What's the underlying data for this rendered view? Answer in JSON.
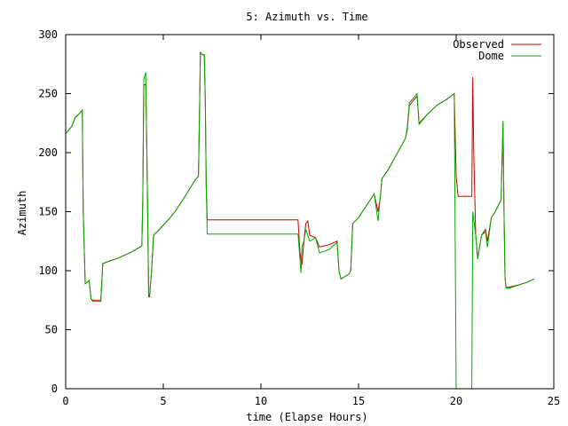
{
  "chart_data": {
    "type": "line",
    "title": "5: Azimuth vs. Time",
    "xlabel": "time (Elapse Hours)",
    "ylabel": "Azimuth",
    "xlim": [
      0,
      25
    ],
    "ylim": [
      0,
      300
    ],
    "xticks": [
      0,
      5,
      10,
      15,
      20,
      25
    ],
    "yticks": [
      0,
      50,
      100,
      150,
      200,
      250,
      300
    ],
    "xtick_labels": [
      "0",
      "5",
      "10",
      "15",
      "20",
      "25"
    ],
    "ytick_labels": [
      "0",
      "50",
      "100",
      "150",
      "200",
      "250",
      "300"
    ],
    "grid": false,
    "legend": "top-right",
    "series": [
      {
        "name": "Observed",
        "color": "#cc0000",
        "points": [
          [
            0.0,
            216
          ],
          [
            0.3,
            222
          ],
          [
            0.5,
            230
          ],
          [
            0.7,
            233
          ],
          [
            0.85,
            236
          ],
          [
            0.9,
            150
          ],
          [
            1.0,
            89
          ],
          [
            1.1,
            90
          ],
          [
            1.2,
            92
          ],
          [
            1.3,
            76
          ],
          [
            1.4,
            75
          ],
          [
            1.8,
            75
          ],
          [
            1.9,
            106
          ],
          [
            2.2,
            108
          ],
          [
            2.6,
            110
          ],
          [
            3.0,
            113
          ],
          [
            3.4,
            116
          ],
          [
            3.7,
            119
          ],
          [
            3.9,
            121
          ],
          [
            3.95,
            160
          ],
          [
            4.0,
            257
          ],
          [
            4.1,
            258
          ],
          [
            4.15,
            210
          ],
          [
            4.2,
            150
          ],
          [
            4.25,
            78
          ],
          [
            4.3,
            78
          ],
          [
            4.4,
            100
          ],
          [
            4.5,
            130
          ],
          [
            4.8,
            135
          ],
          [
            5.2,
            142
          ],
          [
            5.6,
            150
          ],
          [
            6.0,
            160
          ],
          [
            6.3,
            168
          ],
          [
            6.6,
            176
          ],
          [
            6.8,
            180
          ],
          [
            6.85,
            230
          ],
          [
            6.9,
            285
          ],
          [
            7.0,
            283
          ],
          [
            7.1,
            283
          ],
          [
            7.15,
            245
          ],
          [
            7.2,
            170
          ],
          [
            7.25,
            143
          ],
          [
            9.5,
            143
          ],
          [
            11.9,
            143
          ],
          [
            12.0,
            115
          ],
          [
            12.1,
            105
          ],
          [
            12.2,
            125
          ],
          [
            12.3,
            140
          ],
          [
            12.4,
            142
          ],
          [
            12.5,
            130
          ],
          [
            12.8,
            128
          ],
          [
            13.0,
            120
          ],
          [
            13.5,
            122
          ],
          [
            13.9,
            125
          ],
          [
            14.0,
            100
          ],
          [
            14.1,
            93
          ],
          [
            14.3,
            95
          ],
          [
            14.5,
            97
          ],
          [
            14.6,
            100
          ],
          [
            14.7,
            140
          ],
          [
            15.0,
            145
          ],
          [
            15.4,
            155
          ],
          [
            15.8,
            165
          ],
          [
            16.0,
            150
          ],
          [
            16.1,
            160
          ],
          [
            16.2,
            178
          ],
          [
            16.5,
            185
          ],
          [
            17.0,
            200
          ],
          [
            17.4,
            212
          ],
          [
            17.5,
            220
          ],
          [
            17.6,
            240
          ],
          [
            18.0,
            248
          ],
          [
            18.1,
            225
          ],
          [
            18.5,
            232
          ],
          [
            19.0,
            240
          ],
          [
            19.5,
            245
          ],
          [
            19.9,
            250
          ],
          [
            20.0,
            180
          ],
          [
            20.1,
            163
          ],
          [
            20.8,
            163
          ],
          [
            20.85,
            264
          ],
          [
            20.9,
            200
          ],
          [
            21.0,
            130
          ],
          [
            21.1,
            110
          ],
          [
            21.3,
            130
          ],
          [
            21.5,
            135
          ],
          [
            21.6,
            125
          ],
          [
            21.8,
            145
          ],
          [
            22.0,
            150
          ],
          [
            22.3,
            160
          ],
          [
            22.4,
            225
          ],
          [
            22.45,
            150
          ],
          [
            22.5,
            95
          ],
          [
            22.55,
            86
          ],
          [
            22.7,
            86
          ],
          [
            23.2,
            88
          ],
          [
            23.6,
            90
          ],
          [
            24.0,
            93
          ]
        ]
      },
      {
        "name": "Dome",
        "color": "#00aa00",
        "points": [
          [
            0.0,
            216
          ],
          [
            0.3,
            222
          ],
          [
            0.5,
            230
          ],
          [
            0.7,
            233
          ],
          [
            0.85,
            236
          ],
          [
            0.9,
            150
          ],
          [
            1.0,
            89
          ],
          [
            1.1,
            90
          ],
          [
            1.2,
            92
          ],
          [
            1.3,
            76
          ],
          [
            1.4,
            74
          ],
          [
            1.8,
            74
          ],
          [
            1.9,
            106
          ],
          [
            2.2,
            108
          ],
          [
            2.6,
            110
          ],
          [
            3.0,
            113
          ],
          [
            3.4,
            116
          ],
          [
            3.7,
            119
          ],
          [
            3.9,
            121
          ],
          [
            3.95,
            160
          ],
          [
            4.0,
            262
          ],
          [
            4.1,
            268
          ],
          [
            4.15,
            210
          ],
          [
            4.2,
            150
          ],
          [
            4.25,
            80
          ],
          [
            4.3,
            80
          ],
          [
            4.4,
            100
          ],
          [
            4.5,
            130
          ],
          [
            4.8,
            135
          ],
          [
            5.2,
            142
          ],
          [
            5.6,
            150
          ],
          [
            6.0,
            160
          ],
          [
            6.3,
            168
          ],
          [
            6.6,
            176
          ],
          [
            6.8,
            180
          ],
          [
            6.85,
            230
          ],
          [
            6.9,
            285
          ],
          [
            7.0,
            283
          ],
          [
            7.1,
            283
          ],
          [
            7.15,
            245
          ],
          [
            7.2,
            170
          ],
          [
            7.25,
            131
          ],
          [
            9.5,
            131
          ],
          [
            11.9,
            131
          ],
          [
            12.0,
            110
          ],
          [
            12.05,
            98
          ],
          [
            12.1,
            120
          ],
          [
            12.2,
            125
          ],
          [
            12.3,
            135
          ],
          [
            12.4,
            130
          ],
          [
            12.5,
            125
          ],
          [
            12.8,
            128
          ],
          [
            13.0,
            115
          ],
          [
            13.5,
            118
          ],
          [
            13.9,
            124
          ],
          [
            14.0,
            100
          ],
          [
            14.1,
            93
          ],
          [
            14.3,
            95
          ],
          [
            14.5,
            97
          ],
          [
            14.6,
            100
          ],
          [
            14.7,
            140
          ],
          [
            15.0,
            145
          ],
          [
            15.4,
            155
          ],
          [
            15.8,
            165
          ],
          [
            16.0,
            142
          ],
          [
            16.1,
            160
          ],
          [
            16.2,
            178
          ],
          [
            16.5,
            185
          ],
          [
            17.0,
            200
          ],
          [
            17.4,
            212
          ],
          [
            17.5,
            222
          ],
          [
            17.6,
            242
          ],
          [
            18.0,
            250
          ],
          [
            18.1,
            224
          ],
          [
            18.5,
            232
          ],
          [
            19.0,
            240
          ],
          [
            19.5,
            245
          ],
          [
            19.9,
            250
          ],
          [
            20.0,
            0
          ],
          [
            20.8,
            0
          ],
          [
            20.85,
            150
          ],
          [
            21.0,
            130
          ],
          [
            21.1,
            110
          ],
          [
            21.3,
            130
          ],
          [
            21.5,
            133
          ],
          [
            21.6,
            120
          ],
          [
            21.8,
            145
          ],
          [
            22.0,
            150
          ],
          [
            22.3,
            160
          ],
          [
            22.4,
            227
          ],
          [
            22.45,
            150
          ],
          [
            22.5,
            95
          ],
          [
            22.55,
            85
          ],
          [
            22.7,
            85
          ],
          [
            23.2,
            88
          ],
          [
            23.6,
            90
          ],
          [
            24.0,
            93
          ]
        ]
      }
    ]
  }
}
